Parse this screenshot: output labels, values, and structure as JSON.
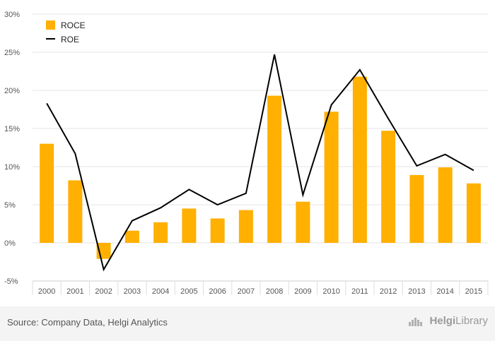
{
  "chart_data": {
    "type": "bar+line",
    "categories": [
      "2000",
      "2001",
      "2002",
      "2003",
      "2004",
      "2005",
      "2006",
      "2007",
      "2008",
      "2009",
      "2010",
      "2011",
      "2012",
      "2013",
      "2014",
      "2015"
    ],
    "series": [
      {
        "name": "ROCE",
        "type": "bar",
        "color": "#ffb000",
        "values": [
          13.0,
          8.2,
          -2.1,
          1.6,
          2.7,
          4.5,
          3.2,
          4.3,
          19.3,
          5.4,
          17.2,
          21.8,
          14.7,
          8.9,
          9.9,
          7.8
        ]
      },
      {
        "name": "ROE",
        "type": "line",
        "color": "#000000",
        "values": [
          18.3,
          11.7,
          -3.5,
          2.9,
          4.6,
          7.0,
          5.0,
          6.5,
          24.7,
          6.3,
          18.1,
          22.7,
          16.3,
          10.1,
          11.6,
          9.5
        ]
      }
    ],
    "ylim": [
      -5,
      30
    ],
    "yticks": [
      "-5%",
      "0%",
      "5%",
      "10%",
      "15%",
      "20%",
      "25%",
      "30%"
    ],
    "ytick_values": [
      -5,
      0,
      5,
      10,
      15,
      20,
      25,
      30
    ],
    "grid": true,
    "legend_position": "top-left"
  },
  "footer": {
    "source": "Source: Company Data, Helgi Analytics",
    "brand_prefix": "Helgi",
    "brand_suffix": "Library",
    "brand_icon": "library-icon"
  }
}
